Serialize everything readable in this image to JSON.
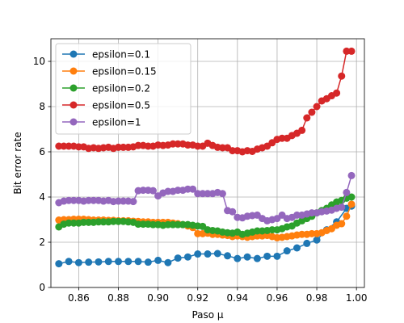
{
  "chart_data": {
    "type": "line",
    "title": "",
    "xlabel": "Paso μ",
    "ylabel": "Bit error rate",
    "xlim": [
      0.846,
      1.004
    ],
    "ylim": [
      0,
      11
    ],
    "xticks": [
      0.86,
      0.88,
      0.9,
      0.92,
      0.94,
      0.96,
      0.98,
      1.0
    ],
    "xtick_labels": [
      "0.86",
      "0.88",
      "0.90",
      "0.92",
      "0.94",
      "0.96",
      "0.98",
      "1.00"
    ],
    "yticks": [
      0,
      2,
      4,
      6,
      8,
      10
    ],
    "ytick_labels": [
      "0",
      "2",
      "4",
      "6",
      "8",
      "10"
    ],
    "grid": true,
    "legend_position": "top-left",
    "x": [
      0.85,
      0.8525,
      0.855,
      0.8575,
      0.86,
      0.8625,
      0.865,
      0.8675,
      0.87,
      0.8725,
      0.875,
      0.8775,
      0.88,
      0.8825,
      0.885,
      0.8875,
      0.89,
      0.8925,
      0.895,
      0.8975,
      0.9,
      0.9025,
      0.905,
      0.9075,
      0.91,
      0.9125,
      0.915,
      0.9175,
      0.92,
      0.9225,
      0.925,
      0.9275,
      0.93,
      0.9325,
      0.935,
      0.9375,
      0.94,
      0.9425,
      0.945,
      0.9475,
      0.95,
      0.9525,
      0.955,
      0.9575,
      0.96,
      0.9625,
      0.965,
      0.9675,
      0.97,
      0.9725,
      0.975,
      0.9775,
      0.98,
      0.9825,
      0.985,
      0.9875,
      0.99,
      0.9925,
      0.995,
      0.9975
    ],
    "series": [
      {
        "name": "epsilon=0.1",
        "color": "#1f77b4",
        "x": [
          0.85,
          0.855,
          0.86,
          0.865,
          0.87,
          0.875,
          0.88,
          0.885,
          0.89,
          0.895,
          0.9,
          0.905,
          0.91,
          0.915,
          0.92,
          0.925,
          0.93,
          0.935,
          0.94,
          0.945,
          0.95,
          0.955,
          0.96,
          0.965,
          0.97,
          0.975,
          0.98,
          0.985,
          0.99,
          0.995,
          0.9975
        ],
        "values": [
          1.05,
          1.15,
          1.1,
          1.12,
          1.13,
          1.15,
          1.15,
          1.15,
          1.15,
          1.12,
          1.2,
          1.1,
          1.3,
          1.35,
          1.48,
          1.48,
          1.5,
          1.4,
          1.28,
          1.35,
          1.28,
          1.38,
          1.38,
          1.62,
          1.75,
          1.95,
          2.1,
          2.55,
          2.9,
          3.5,
          3.6
        ]
      },
      {
        "name": "epsilon=0.15",
        "color": "#ff7f0e",
        "x": [
          0.85,
          0.8525,
          0.855,
          0.8575,
          0.86,
          0.8625,
          0.865,
          0.8675,
          0.87,
          0.8725,
          0.875,
          0.8775,
          0.88,
          0.8825,
          0.885,
          0.8875,
          0.89,
          0.8925,
          0.895,
          0.8975,
          0.9,
          0.9025,
          0.905,
          0.9075,
          0.91,
          0.9125,
          0.915,
          0.9175,
          0.92,
          0.9225,
          0.925,
          0.9275,
          0.93,
          0.9325,
          0.935,
          0.9375,
          0.94,
          0.9425,
          0.945,
          0.9475,
          0.95,
          0.9525,
          0.955,
          0.9575,
          0.96,
          0.9625,
          0.965,
          0.9675,
          0.97,
          0.9725,
          0.975,
          0.9775,
          0.98,
          0.9825,
          0.985,
          0.9875,
          0.99,
          0.9925,
          0.995,
          0.9975
        ],
        "values": [
          2.98,
          3.0,
          3.0,
          3.02,
          3.02,
          3.02,
          3.0,
          2.98,
          2.98,
          2.98,
          2.97,
          2.97,
          2.95,
          2.95,
          2.95,
          2.93,
          2.92,
          2.9,
          2.9,
          2.88,
          2.88,
          2.88,
          2.88,
          2.85,
          2.82,
          2.78,
          2.72,
          2.65,
          2.38,
          2.38,
          2.4,
          2.35,
          2.35,
          2.32,
          2.3,
          2.25,
          2.28,
          2.25,
          2.22,
          2.25,
          2.28,
          2.28,
          2.3,
          2.25,
          2.2,
          2.22,
          2.25,
          2.28,
          2.32,
          2.35,
          2.35,
          2.38,
          2.38,
          2.42,
          2.52,
          2.6,
          2.75,
          2.82,
          3.15,
          3.68
        ]
      },
      {
        "name": "epsilon=0.2",
        "color": "#2ca02c",
        "x": [
          0.85,
          0.8525,
          0.855,
          0.8575,
          0.86,
          0.8625,
          0.865,
          0.8675,
          0.87,
          0.8725,
          0.875,
          0.8775,
          0.88,
          0.8825,
          0.885,
          0.8875,
          0.89,
          0.8925,
          0.895,
          0.8975,
          0.9,
          0.9025,
          0.905,
          0.9075,
          0.91,
          0.9125,
          0.915,
          0.9175,
          0.92,
          0.9225,
          0.925,
          0.9275,
          0.93,
          0.9325,
          0.935,
          0.9375,
          0.94,
          0.9425,
          0.945,
          0.9475,
          0.95,
          0.9525,
          0.955,
          0.9575,
          0.96,
          0.9625,
          0.965,
          0.9675,
          0.97,
          0.9725,
          0.975,
          0.9775,
          0.98,
          0.9825,
          0.985,
          0.9875,
          0.99,
          0.9925,
          0.995,
          0.9975
        ],
        "values": [
          2.68,
          2.8,
          2.85,
          2.85,
          2.85,
          2.88,
          2.88,
          2.88,
          2.9,
          2.9,
          2.9,
          2.92,
          2.92,
          2.92,
          2.9,
          2.88,
          2.8,
          2.8,
          2.8,
          2.78,
          2.78,
          2.75,
          2.78,
          2.78,
          2.78,
          2.78,
          2.78,
          2.75,
          2.72,
          2.7,
          2.55,
          2.52,
          2.5,
          2.45,
          2.42,
          2.4,
          2.45,
          2.35,
          2.4,
          2.45,
          2.5,
          2.5,
          2.52,
          2.55,
          2.55,
          2.6,
          2.68,
          2.72,
          2.85,
          2.95,
          3.05,
          3.15,
          3.3,
          3.4,
          3.5,
          3.65,
          3.78,
          3.85,
          3.95,
          4.0
        ]
      },
      {
        "name": "epsilon=0.5",
        "color": "#d62728",
        "x": [
          0.85,
          0.8525,
          0.855,
          0.8575,
          0.86,
          0.8625,
          0.865,
          0.8675,
          0.87,
          0.8725,
          0.875,
          0.8775,
          0.88,
          0.8825,
          0.885,
          0.8875,
          0.89,
          0.8925,
          0.895,
          0.8975,
          0.9,
          0.9025,
          0.905,
          0.9075,
          0.91,
          0.9125,
          0.915,
          0.9175,
          0.92,
          0.9225,
          0.925,
          0.9275,
          0.93,
          0.9325,
          0.935,
          0.9375,
          0.94,
          0.9425,
          0.945,
          0.9475,
          0.95,
          0.9525,
          0.955,
          0.9575,
          0.96,
          0.9625,
          0.965,
          0.9675,
          0.97,
          0.9725,
          0.975,
          0.9775,
          0.98,
          0.9825,
          0.985,
          0.9875,
          0.99,
          0.9925,
          0.995,
          0.9975
        ],
        "values": [
          6.25,
          6.25,
          6.25,
          6.25,
          6.22,
          6.22,
          6.15,
          6.18,
          6.15,
          6.18,
          6.2,
          6.15,
          6.2,
          6.2,
          6.2,
          6.22,
          6.28,
          6.28,
          6.25,
          6.25,
          6.3,
          6.28,
          6.3,
          6.35,
          6.35,
          6.35,
          6.3,
          6.3,
          6.25,
          6.25,
          6.38,
          6.28,
          6.2,
          6.18,
          6.18,
          6.05,
          6.05,
          6.0,
          6.05,
          6.02,
          6.12,
          6.18,
          6.25,
          6.4,
          6.55,
          6.6,
          6.6,
          6.72,
          6.82,
          6.95,
          7.5,
          7.75,
          8.0,
          8.25,
          8.35,
          8.48,
          8.6,
          9.35,
          10.45,
          10.45
        ]
      },
      {
        "name": "epsilon=1",
        "color": "#9467bd",
        "x": [
          0.85,
          0.8525,
          0.855,
          0.8575,
          0.86,
          0.8625,
          0.865,
          0.8675,
          0.87,
          0.8725,
          0.875,
          0.8775,
          0.88,
          0.8825,
          0.885,
          0.8875,
          0.89,
          0.8925,
          0.895,
          0.8975,
          0.9,
          0.9025,
          0.905,
          0.9075,
          0.91,
          0.9125,
          0.915,
          0.9175,
          0.92,
          0.9225,
          0.925,
          0.9275,
          0.93,
          0.9325,
          0.935,
          0.9375,
          0.94,
          0.9425,
          0.945,
          0.9475,
          0.95,
          0.9525,
          0.955,
          0.9575,
          0.96,
          0.9625,
          0.965,
          0.9675,
          0.97,
          0.9725,
          0.975,
          0.9775,
          0.98,
          0.9825,
          0.985,
          0.9875,
          0.99,
          0.9925,
          0.995,
          0.9975
        ],
        "values": [
          3.75,
          3.82,
          3.85,
          3.85,
          3.85,
          3.82,
          3.85,
          3.85,
          3.85,
          3.82,
          3.85,
          3.8,
          3.82,
          3.82,
          3.82,
          3.8,
          4.28,
          4.3,
          4.3,
          4.28,
          4.05,
          4.18,
          4.25,
          4.25,
          4.3,
          4.3,
          4.35,
          4.35,
          4.15,
          4.15,
          4.15,
          4.15,
          4.2,
          4.15,
          3.4,
          3.35,
          3.1,
          3.08,
          3.15,
          3.18,
          3.2,
          3.05,
          2.95,
          3.0,
          3.05,
          3.2,
          3.05,
          3.1,
          3.2,
          3.2,
          3.25,
          3.3,
          3.3,
          3.35,
          3.38,
          3.42,
          3.5,
          3.55,
          4.2,
          4.95
        ]
      }
    ]
  }
}
